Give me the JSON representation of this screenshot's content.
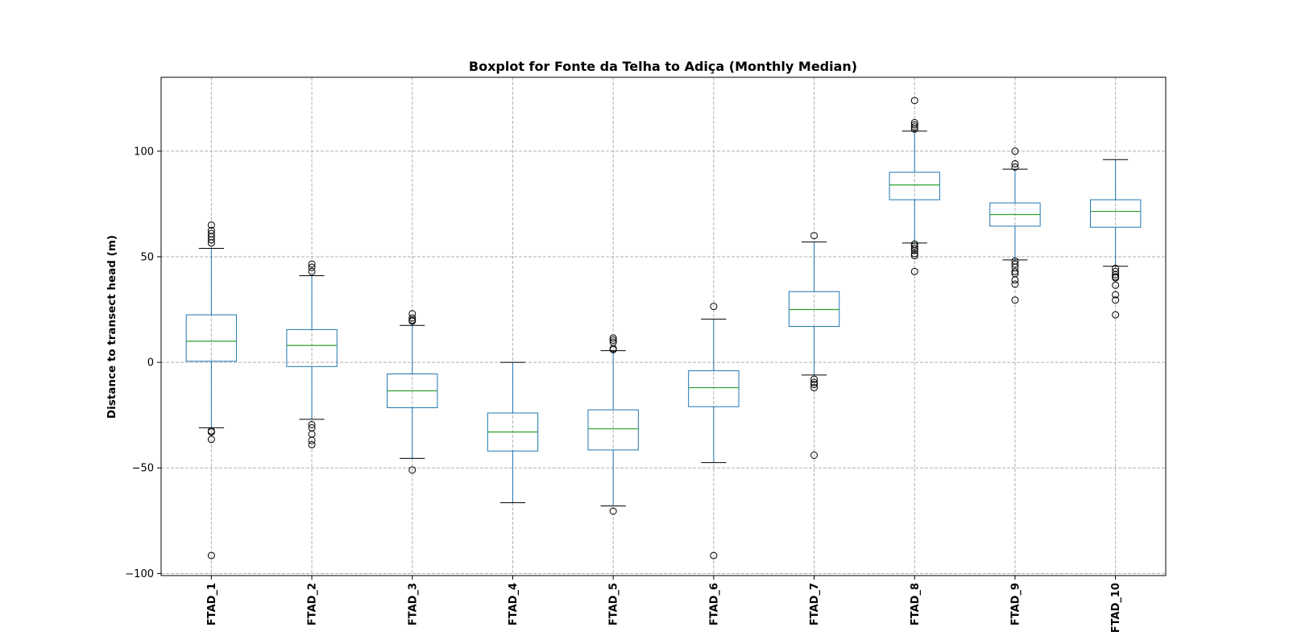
{
  "chart_data": {
    "type": "boxplot",
    "title": "Boxplot for Fonte da Telha to Adiça (Monthly Median)",
    "ylabel": "Distance to transect head (m)",
    "xlabel": "",
    "ylim": [
      -101,
      135
    ],
    "yticks": [
      -100,
      -50,
      0,
      50,
      100
    ],
    "ytick_labels": [
      "−100",
      "−50",
      "0",
      "50",
      "100"
    ],
    "grid": true,
    "colors": {
      "box": "#1f77b4",
      "median": "#2ca02c",
      "whisker": "#1f77b4",
      "cap": "#000000",
      "flier": "#000000",
      "grid": "#b0b0b0"
    },
    "categories": [
      "FTAD_1",
      "FTAD_2",
      "FTAD_3",
      "FTAD_4",
      "FTAD_5",
      "FTAD_6",
      "FTAD_7",
      "FTAD_8",
      "FTAD_9",
      "FTAD_10"
    ],
    "boxes": [
      {
        "whislo": -31,
        "q1": 0.5,
        "med": 10,
        "q3": 22.5,
        "whishi": 54,
        "fliers": [
          65,
          62.5,
          61,
          59.5,
          58,
          56.5,
          -32.5,
          -33,
          -36.5,
          -91.5
        ]
      },
      {
        "whislo": -27,
        "q1": -2,
        "med": 8,
        "q3": 15.5,
        "whishi": 41,
        "fliers": [
          46.5,
          45,
          43,
          -29.5,
          -31,
          -34,
          -37,
          -39
        ]
      },
      {
        "whislo": -45.5,
        "q1": -21.5,
        "med": -13.5,
        "q3": -5.5,
        "whishi": 17.5,
        "fliers": [
          23,
          21,
          20,
          19.5,
          -51
        ]
      },
      {
        "whislo": -66.5,
        "q1": -42,
        "med": -33,
        "q3": -24,
        "whishi": 0,
        "fliers": []
      },
      {
        "whislo": -68,
        "q1": -41.5,
        "med": -31.5,
        "q3": -22.5,
        "whishi": 5.5,
        "fliers": [
          11.5,
          10.5,
          9.5,
          6.5,
          6,
          -70.5
        ]
      },
      {
        "whislo": -47.5,
        "q1": -21,
        "med": -12,
        "q3": -4,
        "whishi": 20.5,
        "fliers": [
          26.5,
          -91.5
        ]
      },
      {
        "whislo": -6,
        "q1": 17,
        "med": 25,
        "q3": 33.5,
        "whishi": 57,
        "fliers": [
          60,
          -8,
          -9.5,
          -10.5,
          -12,
          -44
        ]
      },
      {
        "whislo": 56.5,
        "q1": 77,
        "med": 84,
        "q3": 90,
        "whishi": 109.5,
        "fliers": [
          124,
          113.5,
          112.5,
          111.5,
          110.5,
          56,
          55,
          54,
          53,
          51.5,
          50.5,
          43
        ]
      },
      {
        "whislo": 48.5,
        "q1": 64.5,
        "med": 70,
        "q3": 75.5,
        "whishi": 91.5,
        "fliers": [
          100,
          94,
          92.5,
          48,
          46.5,
          45,
          43,
          42,
          39,
          37,
          29.5
        ]
      },
      {
        "whislo": 45.5,
        "q1": 64,
        "med": 71.5,
        "q3": 77,
        "whishi": 96,
        "fliers": [
          44.5,
          43,
          41.5,
          40.5,
          40,
          36.5,
          32,
          29.5,
          22.5
        ]
      }
    ]
  }
}
